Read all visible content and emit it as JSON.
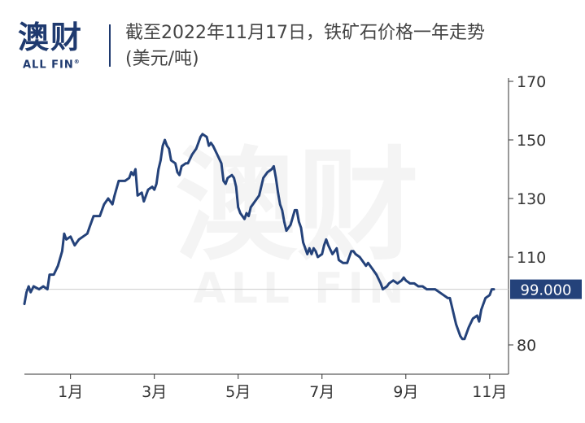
{
  "brand": {
    "logo_cn": "澳财",
    "logo_en": "ALL FIN",
    "registered": "®"
  },
  "header": {
    "title": "截至2022年11月17日，铁矿石价格一年走势",
    "subtitle": "(美元/吨)"
  },
  "colors": {
    "line": "#24427a",
    "label_bg": "#24427a",
    "reference": "#cccccc",
    "axis": "#333333"
  },
  "chart_data": {
    "type": "line",
    "title": "截至2022年11月17日，铁矿石价格一年走势",
    "subtitle": "(美元/吨)",
    "xlabel": "",
    "ylabel": "",
    "ylim": [
      70,
      170
    ],
    "yticks": [
      80,
      110,
      130,
      150,
      170
    ],
    "ytick_labels": [
      "80",
      "110",
      "130",
      "150",
      "170"
    ],
    "xticks": [
      {
        "label": "1月",
        "t": 2.0
      },
      {
        "label": "3月",
        "t": 4.0
      },
      {
        "label": "5月",
        "t": 6.0
      },
      {
        "label": "7月",
        "t": 8.0
      },
      {
        "label": "9月",
        "t": 10.0
      },
      {
        "label": "11月",
        "t": 12.0
      }
    ],
    "last_value_label": "99.000",
    "reference_value": 99,
    "grid": false,
    "series": [
      {
        "points": [
          [
            0.9,
            94
          ],
          [
            0.95,
            98
          ],
          [
            1.0,
            100
          ],
          [
            1.05,
            98
          ],
          [
            1.12,
            100
          ],
          [
            1.25,
            99
          ],
          [
            1.35,
            100
          ],
          [
            1.45,
            99
          ],
          [
            1.5,
            104
          ],
          [
            1.6,
            104
          ],
          [
            1.7,
            107
          ],
          [
            1.8,
            112
          ],
          [
            1.85,
            118
          ],
          [
            1.9,
            116
          ],
          [
            2.0,
            117
          ],
          [
            2.1,
            114
          ],
          [
            2.2,
            116
          ],
          [
            2.3,
            117
          ],
          [
            2.4,
            118
          ],
          [
            2.45,
            120
          ],
          [
            2.55,
            124
          ],
          [
            2.7,
            124
          ],
          [
            2.8,
            128
          ],
          [
            2.9,
            130
          ],
          [
            3.0,
            128
          ],
          [
            3.05,
            131
          ],
          [
            3.15,
            136
          ],
          [
            3.3,
            136
          ],
          [
            3.4,
            137
          ],
          [
            3.45,
            139
          ],
          [
            3.5,
            138
          ],
          [
            3.55,
            140
          ],
          [
            3.6,
            131
          ],
          [
            3.7,
            132
          ],
          [
            3.75,
            129
          ],
          [
            3.85,
            133
          ],
          [
            3.95,
            134
          ],
          [
            4.0,
            133
          ],
          [
            4.05,
            135
          ],
          [
            4.1,
            140
          ],
          [
            4.15,
            143
          ],
          [
            4.2,
            148
          ],
          [
            4.25,
            150
          ],
          [
            4.3,
            148
          ],
          [
            4.35,
            147
          ],
          [
            4.4,
            143
          ],
          [
            4.5,
            142
          ],
          [
            4.55,
            139
          ],
          [
            4.6,
            138
          ],
          [
            4.65,
            141
          ],
          [
            4.75,
            142
          ],
          [
            4.8,
            142
          ],
          [
            4.9,
            145
          ],
          [
            5.0,
            147
          ],
          [
            5.05,
            149
          ],
          [
            5.1,
            151
          ],
          [
            5.15,
            152
          ],
          [
            5.25,
            151
          ],
          [
            5.3,
            148
          ],
          [
            5.35,
            149
          ],
          [
            5.4,
            148
          ],
          [
            5.5,
            145
          ],
          [
            5.6,
            142
          ],
          [
            5.65,
            136
          ],
          [
            5.7,
            135
          ],
          [
            5.75,
            137
          ],
          [
            5.85,
            138
          ],
          [
            5.9,
            137
          ],
          [
            5.95,
            134
          ],
          [
            6.0,
            127
          ],
          [
            6.05,
            125
          ],
          [
            6.15,
            123
          ],
          [
            6.2,
            125
          ],
          [
            6.25,
            124
          ],
          [
            6.3,
            127
          ],
          [
            6.4,
            129
          ],
          [
            6.5,
            131
          ],
          [
            6.6,
            137
          ],
          [
            6.7,
            139
          ],
          [
            6.8,
            140
          ],
          [
            6.85,
            141
          ],
          [
            6.9,
            137
          ],
          [
            6.95,
            132
          ],
          [
            7.0,
            128
          ],
          [
            7.05,
            126
          ],
          [
            7.1,
            122
          ],
          [
            7.15,
            119
          ],
          [
            7.25,
            121
          ],
          [
            7.35,
            126
          ],
          [
            7.4,
            126
          ],
          [
            7.45,
            122
          ],
          [
            7.5,
            120
          ],
          [
            7.55,
            115
          ],
          [
            7.6,
            113
          ],
          [
            7.65,
            111
          ],
          [
            7.7,
            113
          ],
          [
            7.75,
            111
          ],
          [
            7.8,
            113
          ],
          [
            7.85,
            112
          ],
          [
            7.9,
            110
          ],
          [
            8.0,
            111
          ],
          [
            8.05,
            114
          ],
          [
            8.1,
            116
          ],
          [
            8.15,
            114
          ],
          [
            8.25,
            111
          ],
          [
            8.35,
            113
          ],
          [
            8.4,
            109
          ],
          [
            8.5,
            108
          ],
          [
            8.6,
            108
          ],
          [
            8.65,
            110
          ],
          [
            8.7,
            112
          ],
          [
            8.75,
            112
          ],
          [
            8.8,
            111
          ],
          [
            8.9,
            110
          ],
          [
            8.95,
            109
          ],
          [
            9.0,
            108
          ],
          [
            9.05,
            107
          ],
          [
            9.1,
            108
          ],
          [
            9.2,
            106
          ],
          [
            9.3,
            104
          ],
          [
            9.4,
            101
          ],
          [
            9.45,
            99
          ],
          [
            9.55,
            100
          ],
          [
            9.6,
            101
          ],
          [
            9.7,
            102
          ],
          [
            9.8,
            101
          ],
          [
            9.9,
            102
          ],
          [
            9.95,
            103
          ],
          [
            10.0,
            102
          ],
          [
            10.1,
            101
          ],
          [
            10.2,
            101
          ],
          [
            10.3,
            100
          ],
          [
            10.4,
            100
          ],
          [
            10.5,
            99
          ],
          [
            10.6,
            99
          ],
          [
            10.7,
            99
          ],
          [
            10.8,
            98
          ],
          [
            10.9,
            97
          ],
          [
            11.0,
            96
          ],
          [
            11.05,
            96
          ],
          [
            11.1,
            93
          ],
          [
            11.2,
            87
          ],
          [
            11.3,
            83
          ],
          [
            11.35,
            82
          ],
          [
            11.4,
            82
          ],
          [
            11.5,
            86
          ],
          [
            11.6,
            89
          ],
          [
            11.7,
            90
          ],
          [
            11.75,
            88
          ],
          [
            11.8,
            92
          ],
          [
            11.9,
            96
          ],
          [
            12.0,
            97
          ],
          [
            12.05,
            99
          ],
          [
            12.1,
            99
          ]
        ]
      }
    ]
  }
}
